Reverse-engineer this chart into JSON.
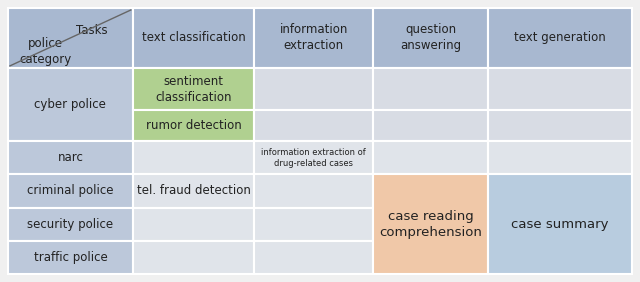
{
  "figsize": [
    6.4,
    2.82
  ],
  "dpi": 100,
  "bg_color": "#f0f0f0",
  "table_bg": "#ffffff",
  "colors": {
    "header_bg": "#a8b8d0",
    "row_label_bg": "#bcc8da",
    "cell_empty": "#d8dce4",
    "cell_empty2": "#e0e4ea",
    "green_cell": "#b0d090",
    "orange_cell": "#f0c8a8",
    "blue_merged": "#b8ccdf"
  },
  "col_headers": [
    "text classification",
    "information\nextraction",
    "question\nanswering",
    "text generation"
  ],
  "corner_top": "Tasks",
  "corner_bottom": "police\ncategory",
  "row_labels": [
    "cyber police",
    "narc",
    "criminal police",
    "security police",
    "traffic police"
  ],
  "cell_contents": {
    "r0c1": "sentiment\nclassification",
    "r1c1": "rumor detection",
    "r2c2": "information extraction of\ndrug-related cases",
    "r3c1": "tel. fraud detection",
    "merged_qa": "case reading\ncomprehension",
    "merged_tg": "case summary"
  }
}
